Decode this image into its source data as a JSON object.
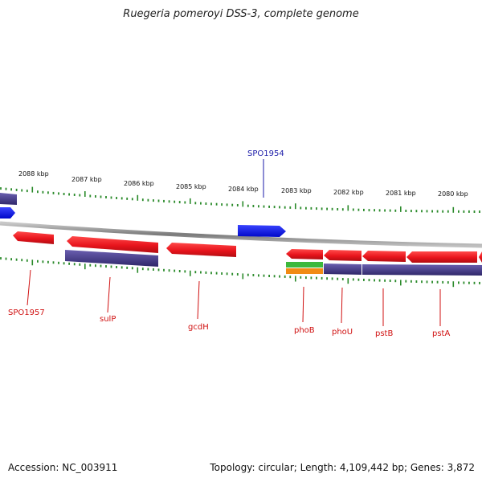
{
  "title": "Ruegeria pomeroyi DSS-3, complete genome",
  "footer": {
    "accession": "Accession: NC_003911",
    "summary": "Topology: circular; Length: 4,109,442 bp; Genes: 3,872"
  },
  "colors": {
    "backbone": "#8c8c8c",
    "tick": "#2a8a2a",
    "forward_gene": "#0b14ee",
    "reverse_gene": "#e8141c",
    "cds_bar": "#4a3f86",
    "green_feature": "#3cb83c",
    "orange_feature": "#f18b14",
    "label_red": "#d01010",
    "label_blue": "#1a1aa8"
  },
  "scale_labels": [
    "2088 kbp",
    "2087 kbp",
    "2086 kbp",
    "2085 kbp",
    "2084 kbp",
    "2083 kbp",
    "2082 kbp",
    "2081 kbp",
    "2080 kbp"
  ],
  "gene_labels": [
    {
      "name": "SPO1954",
      "strand": "forward"
    },
    {
      "name": "SPO1957",
      "strand": "reverse"
    },
    {
      "name": "sulP",
      "strand": "reverse"
    },
    {
      "name": "gcdH",
      "strand": "reverse"
    },
    {
      "name": "phoB",
      "strand": "reverse"
    },
    {
      "name": "phoU",
      "strand": "reverse"
    },
    {
      "name": "pstB",
      "strand": "reverse"
    },
    {
      "name": "pstA",
      "strand": "reverse"
    }
  ]
}
